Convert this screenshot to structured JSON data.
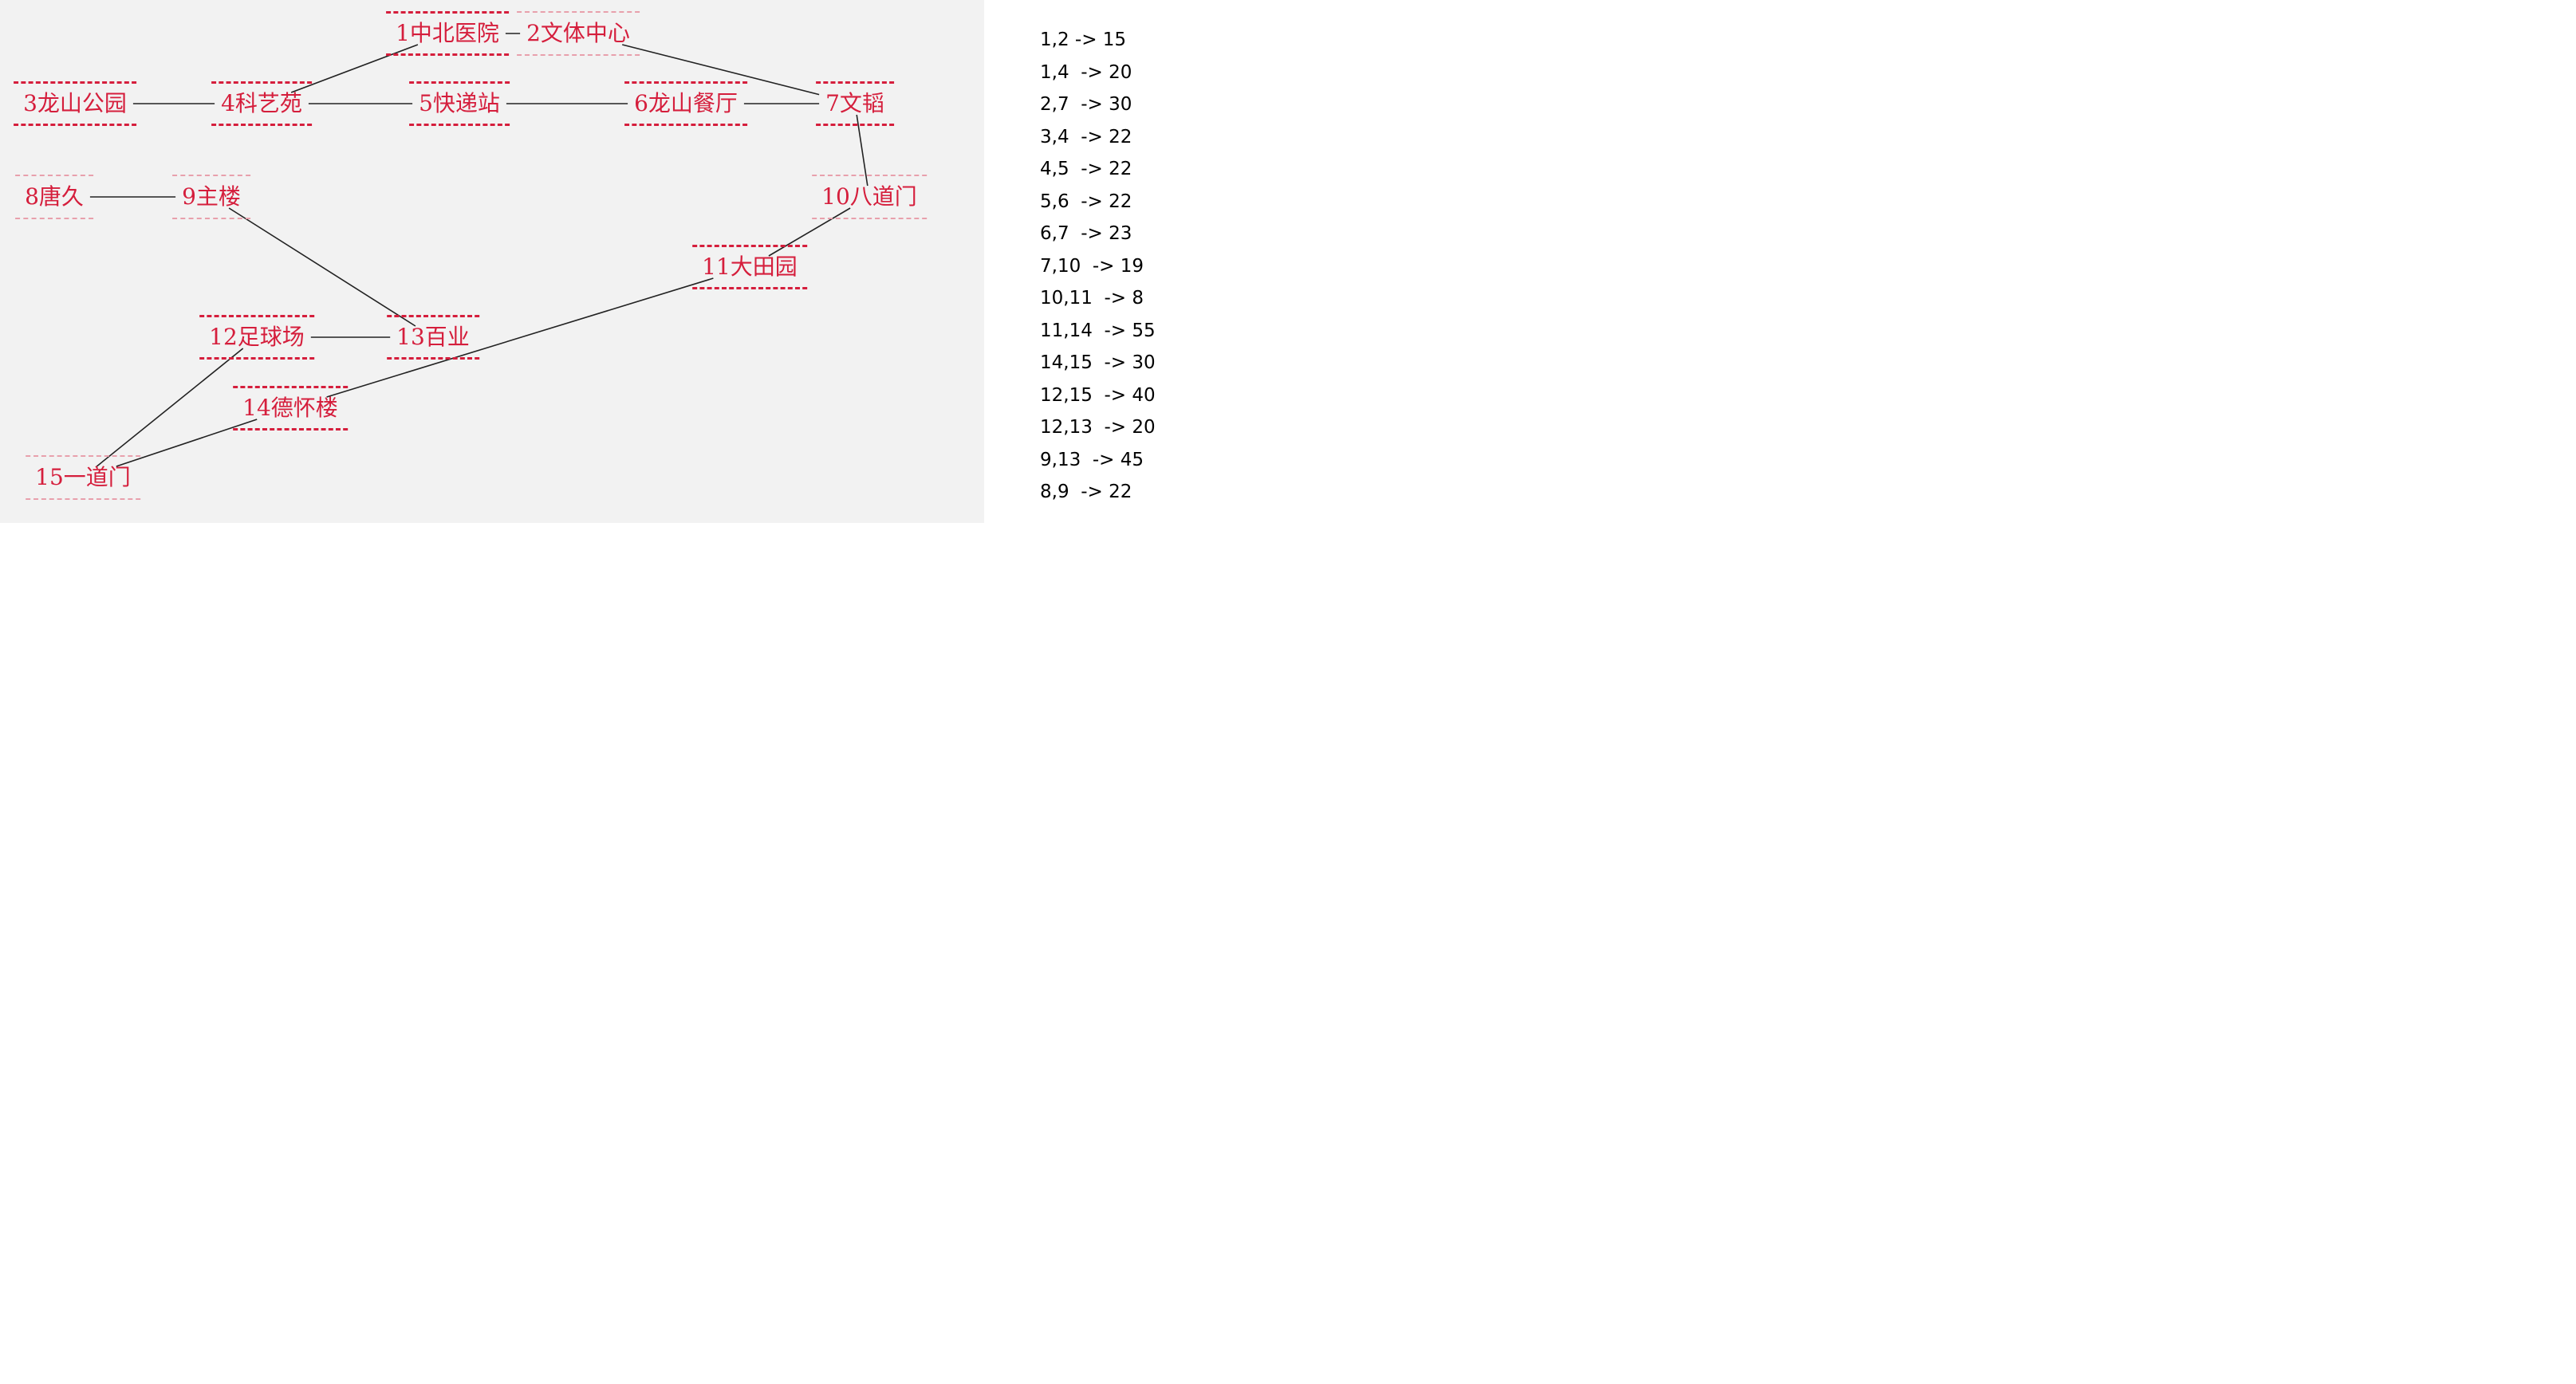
{
  "colors": {
    "panel_background": "#f2f2f2",
    "node_text": "#d51e3c",
    "edge_line": "#222222",
    "list_text": "#000000"
  },
  "nodes": [
    {
      "id": "1",
      "label": "1中北医院"
    },
    {
      "id": "2",
      "label": "2文体中心"
    },
    {
      "id": "3",
      "label": "3龙山公园"
    },
    {
      "id": "4",
      "label": "4科艺苑"
    },
    {
      "id": "5",
      "label": "5快递站"
    },
    {
      "id": "6",
      "label": "6龙山餐厅"
    },
    {
      "id": "7",
      "label": "7文韬"
    },
    {
      "id": "8",
      "label": "8唐久"
    },
    {
      "id": "9",
      "label": "9主楼"
    },
    {
      "id": "10",
      "label": "10八道门"
    },
    {
      "id": "11",
      "label": "11大田园"
    },
    {
      "id": "12",
      "label": "12足球场"
    },
    {
      "id": "13",
      "label": "13百业"
    },
    {
      "id": "14",
      "label": "14德怀楼"
    },
    {
      "id": "15",
      "label": "15一道门"
    }
  ],
  "edges": [
    {
      "from": "1",
      "to": "2",
      "weight": 15,
      "text": "1,2 -> 15"
    },
    {
      "from": "1",
      "to": "4",
      "weight": 20,
      "text": "1,4  -> 20"
    },
    {
      "from": "2",
      "to": "7",
      "weight": 30,
      "text": "2,7  -> 30"
    },
    {
      "from": "3",
      "to": "4",
      "weight": 22,
      "text": "3,4  -> 22"
    },
    {
      "from": "4",
      "to": "5",
      "weight": 22,
      "text": "4,5  -> 22"
    },
    {
      "from": "5",
      "to": "6",
      "weight": 22,
      "text": "5,6  -> 22"
    },
    {
      "from": "6",
      "to": "7",
      "weight": 23,
      "text": "6,7  -> 23"
    },
    {
      "from": "7",
      "to": "10",
      "weight": 19,
      "text": "7,10  -> 19"
    },
    {
      "from": "10",
      "to": "11",
      "weight": 8,
      "text": "10,11  -> 8"
    },
    {
      "from": "11",
      "to": "14",
      "weight": 55,
      "text": "11,14  -> 55"
    },
    {
      "from": "14",
      "to": "15",
      "weight": 30,
      "text": "14,15  -> 30"
    },
    {
      "from": "12",
      "to": "15",
      "weight": 40,
      "text": "12,15  -> 40"
    },
    {
      "from": "12",
      "to": "13",
      "weight": 20,
      "text": "12,13  -> 20"
    },
    {
      "from": "9",
      "to": "13",
      "weight": 45,
      "text": "9,13  -> 45"
    },
    {
      "from": "8",
      "to": "9",
      "weight": 22,
      "text": "8,9  -> 22"
    }
  ]
}
